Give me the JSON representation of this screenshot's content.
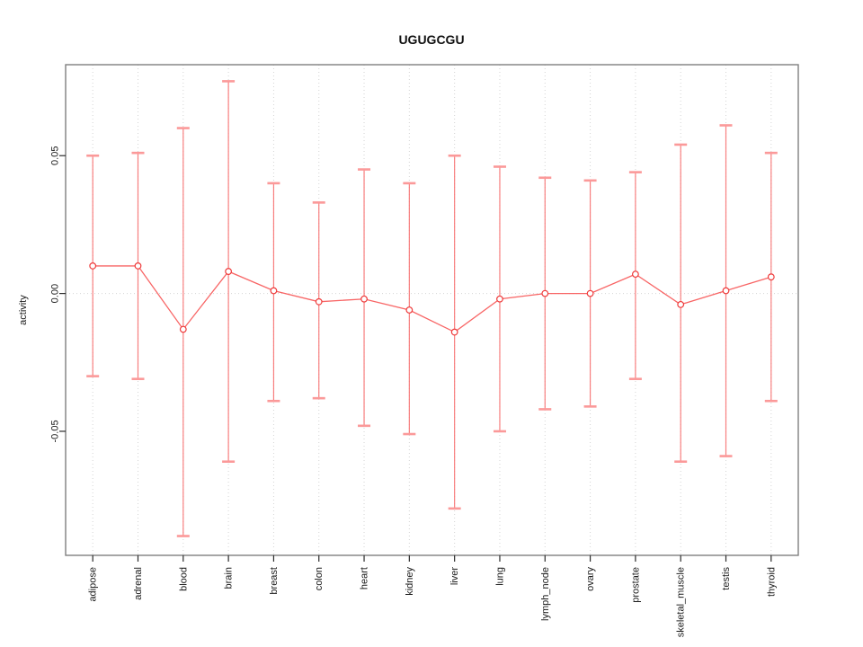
{
  "chart_data": {
    "type": "line",
    "title": "UGUGCGU",
    "xlabel": "",
    "ylabel": "activity",
    "categories": [
      "adipose",
      "adrenal",
      "blood",
      "brain",
      "breast",
      "colon",
      "heart",
      "kidney",
      "liver",
      "lung",
      "lymph_node",
      "ovary",
      "prostate",
      "skeletal_muscle",
      "testis",
      "thyroid"
    ],
    "series": [
      {
        "name": "activity",
        "values": [
          0.01,
          0.01,
          -0.013,
          0.008,
          0.001,
          -0.003,
          -0.002,
          -0.006,
          -0.014,
          -0.002,
          0.0,
          0.0,
          0.007,
          -0.004,
          0.001,
          0.006
        ],
        "lower": [
          -0.03,
          -0.031,
          -0.088,
          -0.061,
          -0.039,
          -0.038,
          -0.048,
          -0.051,
          -0.078,
          -0.05,
          -0.042,
          -0.041,
          -0.031,
          -0.061,
          -0.059,
          -0.039
        ],
        "upper": [
          0.05,
          0.051,
          0.06,
          0.077,
          0.04,
          0.033,
          0.045,
          0.04,
          0.05,
          0.046,
          0.042,
          0.041,
          0.044,
          0.054,
          0.061,
          0.051
        ]
      }
    ],
    "yticks": [
      0.05,
      0.0,
      -0.05
    ],
    "ytick_labels": [
      "0.05",
      "0.00",
      "-0.05"
    ],
    "ylim": [
      -0.095,
      0.083
    ],
    "grid": "dotted vertical gridline per category, dotted horizontal line at zero",
    "legend": "none",
    "marker": "open-circle"
  },
  "colors": {
    "point_stroke": "#ee3a3a",
    "series_line": "#f85d5d",
    "errorbar_line": "#f87272",
    "errorbar_cap": "#fb9999",
    "grid": "#d4d4d4",
    "box": "#7f7f7f",
    "tick": "#2b2b2b"
  }
}
